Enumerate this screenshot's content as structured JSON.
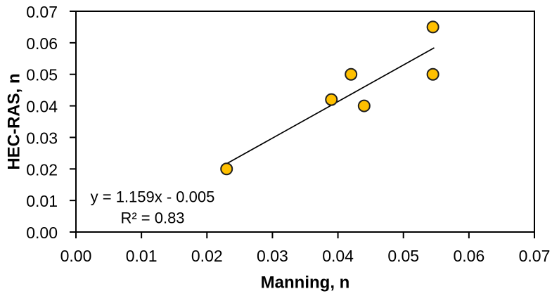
{
  "chart_data": {
    "type": "scatter",
    "title": "",
    "xlabel": "Manning, n",
    "ylabel": "HEC-RAS, n",
    "xlim": [
      0.0,
      0.07
    ],
    "ylim": [
      0.0,
      0.07
    ],
    "x_tick_step": 0.01,
    "y_tick_step": 0.01,
    "tick_decimals": 2,
    "grid": false,
    "legend": "none",
    "points": [
      {
        "x": 0.023,
        "y": 0.02
      },
      {
        "x": 0.039,
        "y": 0.042
      },
      {
        "x": 0.042,
        "y": 0.05
      },
      {
        "x": 0.044,
        "y": 0.04
      },
      {
        "x": 0.0545,
        "y": 0.05
      },
      {
        "x": 0.0545,
        "y": 0.065
      }
    ],
    "trendline": {
      "slope": 1.159,
      "intercept": -0.005,
      "x_start": 0.0228,
      "x_end": 0.0547
    },
    "annotation": {
      "line1": "y = 1.159x - 0.005",
      "line2": "R² = 0.83"
    },
    "colors": {
      "marker_fill": "#FFC000",
      "marker_stroke": "#1f1f1f",
      "trendline": "#000000",
      "axis": "#000000",
      "text": "#000000",
      "background": "#ffffff"
    }
  }
}
